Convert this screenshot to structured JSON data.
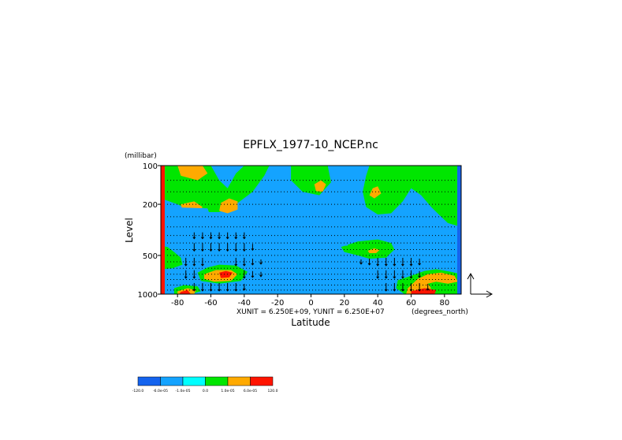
{
  "chart_data": {
    "type": "heatmap",
    "title": "EPFLX_1977-10_NCEP.nc",
    "xlabel": "Latitude",
    "ylabel": "Level",
    "x_units": "(degrees_north)",
    "y_units": "(millibar)",
    "vector_units": "XUNIT = 6.250E+09, YUNIT = 6.250E+07",
    "xlim": [
      -90,
      90
    ],
    "ylim": [
      1000,
      100
    ],
    "y_scale": "log",
    "x_ticks": [
      -80,
      -60,
      -40,
      -20,
      0,
      20,
      40,
      60,
      80
    ],
    "x_tick_labels": [
      "-80",
      "-60",
      "-40",
      "-20",
      "0",
      "20",
      "40",
      "60",
      "80"
    ],
    "y_ticks": [
      100,
      200,
      500,
      1000
    ],
    "y_tick_labels": [
      "100",
      "200",
      "500",
      "1000"
    ],
    "grid": false,
    "colorbar": {
      "position": "bottom-left",
      "colors": [
        "#1463ee",
        "#14a3ff",
        "#00ffff",
        "#00e600",
        "#ffaa00",
        "#ff1400"
      ],
      "labels": [
        "-120.0",
        "-6.0e-05",
        "-1.0e-05",
        "0.0",
        "1.0e-05",
        "6.0e-05",
        "120.0"
      ]
    },
    "regions": [
      {
        "level": 3,
        "label": "0.0 to 1.0e-05",
        "points": [
          [
            -90,
            100
          ],
          [
            -60,
            100
          ],
          [
            -55,
            130
          ],
          [
            -50,
            150
          ],
          [
            -45,
            115
          ],
          [
            -40,
            100
          ],
          [
            -25,
            100
          ],
          [
            -28,
            120
          ],
          [
            -35,
            160
          ],
          [
            -45,
            200
          ],
          [
            -55,
            230
          ],
          [
            -70,
            230
          ],
          [
            -80,
            200
          ],
          [
            -90,
            180
          ]
        ]
      },
      {
        "level": 3,
        "label": "0.0 to 1.0e-05",
        "points": [
          [
            -12,
            100
          ],
          [
            10,
            100
          ],
          [
            12,
            135
          ],
          [
            5,
            170
          ],
          [
            -5,
            160
          ],
          [
            -12,
            130
          ]
        ]
      },
      {
        "level": 3,
        "label": "0.0 to 1.0e-05",
        "points": [
          [
            35,
            100
          ],
          [
            90,
            100
          ],
          [
            90,
            300
          ],
          [
            82,
            280
          ],
          [
            78,
            250
          ],
          [
            72,
            210
          ],
          [
            66,
            170
          ],
          [
            60,
            150
          ],
          [
            55,
            190
          ],
          [
            48,
            235
          ],
          [
            40,
            240
          ],
          [
            33,
            210
          ],
          [
            31,
            160
          ],
          [
            33,
            120
          ]
        ]
      },
      {
        "level": 3,
        "label": "0.0 to 1.0e-05",
        "points": [
          [
            18,
            430
          ],
          [
            28,
            390
          ],
          [
            40,
            375
          ],
          [
            48,
            400
          ],
          [
            50,
            450
          ],
          [
            45,
            520
          ],
          [
            35,
            530
          ],
          [
            28,
            500
          ],
          [
            20,
            470
          ]
        ]
      },
      {
        "level": 3,
        "label": "0.0 to 1.0e-05",
        "points": [
          [
            -90,
            420
          ],
          [
            -86,
            430
          ],
          [
            -82,
            470
          ],
          [
            -78,
            520
          ],
          [
            -77,
            590
          ],
          [
            -83,
            630
          ],
          [
            -90,
            640
          ]
        ]
      },
      {
        "level": 3,
        "label": "0.0 to 1.0e-05",
        "points": [
          [
            -68,
            680
          ],
          [
            -62,
            620
          ],
          [
            -55,
            590
          ],
          [
            -45,
            600
          ],
          [
            -38,
            670
          ],
          [
            -42,
            790
          ],
          [
            -55,
            830
          ],
          [
            -66,
            790
          ]
        ]
      },
      {
        "level": 3,
        "label": "0.0 to 1.0e-05",
        "points": [
          [
            -82,
            900
          ],
          [
            -76,
            850
          ],
          [
            -68,
            870
          ],
          [
            -66,
            950
          ],
          [
            -72,
            1000
          ],
          [
            -82,
            1000
          ]
        ]
      },
      {
        "level": 3,
        "label": "0.0 to 1.0e-05",
        "points": [
          [
            52,
            780
          ],
          [
            60,
            720
          ],
          [
            68,
            660
          ],
          [
            75,
            640
          ],
          [
            84,
            670
          ],
          [
            90,
            700
          ],
          [
            90,
            1000
          ],
          [
            56,
            1000
          ],
          [
            51,
            900
          ]
        ]
      },
      {
        "level": 4,
        "label": "1.0e-05 to 6.0e-05",
        "points": [
          [
            -80,
            100
          ],
          [
            -65,
            100
          ],
          [
            -62,
            115
          ],
          [
            -68,
            130
          ],
          [
            -78,
            120
          ]
        ]
      },
      {
        "level": 4,
        "label": "1.0e-05 to 6.0e-05",
        "points": [
          [
            -78,
            200
          ],
          [
            -70,
            190
          ],
          [
            -65,
            210
          ],
          [
            -68,
            240
          ],
          [
            -76,
            245
          ]
        ]
      },
      {
        "level": 4,
        "label": "1.0e-05 to 6.0e-05",
        "points": [
          [
            -54,
            195
          ],
          [
            -49,
            180
          ],
          [
            -44,
            190
          ],
          [
            -44,
            220
          ],
          [
            -50,
            235
          ],
          [
            -55,
            225
          ]
        ]
      },
      {
        "level": 4,
        "label": "1.0e-05 to 6.0e-05",
        "points": [
          [
            2,
            140
          ],
          [
            6,
            130
          ],
          [
            9,
            140
          ],
          [
            7,
            160
          ],
          [
            3,
            158
          ]
        ]
      },
      {
        "level": 4,
        "label": "1.0e-05 to 6.0e-05",
        "points": [
          [
            37,
            150
          ],
          [
            40,
            145
          ],
          [
            42,
            165
          ],
          [
            38,
            180
          ],
          [
            35,
            170
          ]
        ]
      },
      {
        "level": 4,
        "label": "1.0e-05 to 6.0e-05",
        "points": [
          [
            34,
            460
          ],
          [
            38,
            440
          ],
          [
            41,
            455
          ],
          [
            39,
            480
          ],
          [
            35,
            480
          ]
        ]
      },
      {
        "level": 4,
        "label": "1.0e-05 to 6.0e-05",
        "points": [
          [
            -64,
            700
          ],
          [
            -57,
            650
          ],
          [
            -48,
            650
          ],
          [
            -44,
            700
          ],
          [
            -48,
            790
          ],
          [
            -58,
            800
          ],
          [
            -64,
            760
          ]
        ]
      },
      {
        "level": 4,
        "label": "1.0e-05 to 6.0e-05",
        "points": [
          [
            -80,
            950
          ],
          [
            -74,
            900
          ],
          [
            -69,
            930
          ],
          [
            -70,
            1000
          ],
          [
            -80,
            1000
          ]
        ]
      },
      {
        "level": 4,
        "label": "1.0e-05 to 6.0e-05",
        "points": [
          [
            58,
            900
          ],
          [
            64,
            760
          ],
          [
            70,
            700
          ],
          [
            78,
            680
          ],
          [
            86,
            720
          ],
          [
            88,
            800
          ],
          [
            82,
            830
          ],
          [
            75,
            800
          ],
          [
            70,
            830
          ],
          [
            72,
            900
          ],
          [
            68,
            960
          ],
          [
            62,
            1000
          ],
          [
            57,
            1000
          ]
        ]
      },
      {
        "level": 5,
        "label": "6.0e-05 to 120.0",
        "points": [
          [
            -55,
            680
          ],
          [
            -51,
            660
          ],
          [
            -47,
            680
          ],
          [
            -49,
            740
          ],
          [
            -54,
            750
          ]
        ]
      },
      {
        "level": 5,
        "label": "6.0e-05 to 120.0",
        "points": [
          [
            -78,
            960
          ],
          [
            -74,
            930
          ],
          [
            -72,
            1000
          ],
          [
            -79,
            1000
          ]
        ]
      },
      {
        "level": 5,
        "label": "6.0e-05 to 120.0",
        "points": [
          [
            60,
            950
          ],
          [
            68,
            900
          ],
          [
            75,
            930
          ],
          [
            74,
            1000
          ],
          [
            60,
            1000
          ]
        ]
      },
      {
        "level": 1,
        "label": "-6.0e-05 to -1.0e-05",
        "points": [
          [
            -20,
            300
          ],
          [
            20,
            300
          ],
          [
            22,
            420
          ],
          [
            -18,
            420
          ]
        ]
      },
      {
        "level": 1,
        "label": "-6.0e-05 to -1.0e-05",
        "points": [
          [
            -88,
            210
          ],
          [
            -62,
            215
          ],
          [
            -58,
            300
          ],
          [
            -78,
            330
          ],
          [
            -86,
            300
          ]
        ]
      }
    ],
    "vectors": [
      {
        "x": -70,
        "y": 430,
        "dy": 1
      },
      {
        "x": -65,
        "y": 430,
        "dy": 1
      },
      {
        "x": -60,
        "y": 430,
        "dy": 1
      },
      {
        "x": -55,
        "y": 430,
        "dy": 1
      },
      {
        "x": -50,
        "y": 430,
        "dy": 1
      },
      {
        "x": -45,
        "y": 430,
        "dy": 1
      },
      {
        "x": -40,
        "y": 430,
        "dy": 1
      },
      {
        "x": -35,
        "y": 430,
        "dy": 0.8
      },
      {
        "x": -70,
        "y": 350,
        "dy": 0.8
      },
      {
        "x": -65,
        "y": 350,
        "dy": 0.8
      },
      {
        "x": -60,
        "y": 350,
        "dy": 0.8
      },
      {
        "x": -55,
        "y": 350,
        "dy": 0.8
      },
      {
        "x": -50,
        "y": 350,
        "dy": 0.8
      },
      {
        "x": -45,
        "y": 350,
        "dy": 0.8
      },
      {
        "x": -40,
        "y": 350,
        "dy": 0.8
      },
      {
        "x": -75,
        "y": 560,
        "dy": 1
      },
      {
        "x": -70,
        "y": 560,
        "dy": 1
      },
      {
        "x": -65,
        "y": 560,
        "dy": 1
      },
      {
        "x": -45,
        "y": 560,
        "dy": 1
      },
      {
        "x": -40,
        "y": 560,
        "dy": 1
      },
      {
        "x": -35,
        "y": 560,
        "dy": 0.8
      },
      {
        "x": -30,
        "y": 560,
        "dy": 0.6
      },
      {
        "x": -75,
        "y": 700,
        "dy": 1
      },
      {
        "x": -70,
        "y": 700,
        "dy": 1
      },
      {
        "x": -40,
        "y": 700,
        "dy": 1
      },
      {
        "x": -35,
        "y": 700,
        "dy": 0.8
      },
      {
        "x": -30,
        "y": 700,
        "dy": 0.6
      },
      {
        "x": -70,
        "y": 880,
        "dy": 1
      },
      {
        "x": -65,
        "y": 880,
        "dy": 1
      },
      {
        "x": -60,
        "y": 880,
        "dy": 1
      },
      {
        "x": -55,
        "y": 880,
        "dy": 1
      },
      {
        "x": -50,
        "y": 880,
        "dy": 1
      },
      {
        "x": -45,
        "y": 880,
        "dy": 1
      },
      {
        "x": -40,
        "y": 880,
        "dy": 0.8
      },
      {
        "x": 30,
        "y": 560,
        "dy": 0.6
      },
      {
        "x": 35,
        "y": 560,
        "dy": 0.8
      },
      {
        "x": 40,
        "y": 560,
        "dy": 1
      },
      {
        "x": 45,
        "y": 560,
        "dy": 1
      },
      {
        "x": 50,
        "y": 560,
        "dy": 1
      },
      {
        "x": 55,
        "y": 560,
        "dy": 1
      },
      {
        "x": 60,
        "y": 560,
        "dy": 1
      },
      {
        "x": 65,
        "y": 560,
        "dy": 0.8
      },
      {
        "x": 40,
        "y": 700,
        "dy": 1
      },
      {
        "x": 45,
        "y": 700,
        "dy": 1
      },
      {
        "x": 50,
        "y": 700,
        "dy": 1
      },
      {
        "x": 55,
        "y": 700,
        "dy": 1
      },
      {
        "x": 60,
        "y": 700,
        "dy": 1
      },
      {
        "x": 65,
        "y": 700,
        "dy": 0.8
      },
      {
        "x": 45,
        "y": 880,
        "dy": 1
      },
      {
        "x": 50,
        "y": 880,
        "dy": 1
      },
      {
        "x": 55,
        "y": 880,
        "dy": 1
      },
      {
        "x": 60,
        "y": 880,
        "dy": 1
      },
      {
        "x": 65,
        "y": 880,
        "dy": 1
      },
      {
        "x": 70,
        "y": 880,
        "dy": 0.8
      }
    ],
    "dotted_levels": [
      130,
      160,
      200,
      250,
      300,
      350,
      400,
      450,
      500,
      560,
      630,
      700,
      770,
      850,
      930
    ]
  }
}
